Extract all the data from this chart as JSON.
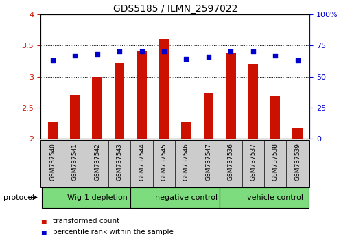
{
  "title": "GDS5185 / ILMN_2597022",
  "samples": [
    "GSM737540",
    "GSM737541",
    "GSM737542",
    "GSM737543",
    "GSM737544",
    "GSM737545",
    "GSM737546",
    "GSM737547",
    "GSM737536",
    "GSM737537",
    "GSM737538",
    "GSM737539"
  ],
  "transformed_count": [
    2.27,
    2.7,
    3.0,
    3.22,
    3.4,
    3.6,
    2.28,
    2.73,
    3.38,
    3.2,
    2.68,
    2.17
  ],
  "percentile_rank": [
    63,
    67,
    68,
    70,
    70,
    70,
    64,
    66,
    70,
    70,
    67,
    63
  ],
  "groups": [
    {
      "label": "Wig-1 depletion",
      "start": 0,
      "end": 4
    },
    {
      "label": "negative control",
      "start": 4,
      "end": 8
    },
    {
      "label": "vehicle control",
      "start": 8,
      "end": 12
    }
  ],
  "group_color": "#7ddc7d",
  "bar_color": "#cc1100",
  "dot_color": "#0000cc",
  "ylim_left": [
    2.0,
    4.0
  ],
  "ylim_right": [
    0,
    100
  ],
  "yticks_left": [
    2.0,
    2.5,
    3.0,
    3.5,
    4.0
  ],
  "ytick_labels_left": [
    "2",
    "2.5",
    "3",
    "3.5",
    "4"
  ],
  "yticks_right": [
    0,
    25,
    50,
    75,
    100
  ],
  "ytick_labels_right": [
    "0",
    "25",
    "50",
    "75",
    "100%"
  ],
  "ylabel_left_color": "#cc1100",
  "ylabel_right_color": "#0000cc",
  "bar_width": 0.45,
  "legend_items": [
    {
      "label": "transformed count",
      "color": "#cc1100"
    },
    {
      "label": "percentile rank within the sample",
      "color": "#0000cc"
    }
  ],
  "protocol_label": "protocol",
  "sample_box_color": "#cccccc",
  "xlim": [
    -0.55,
    11.55
  ]
}
